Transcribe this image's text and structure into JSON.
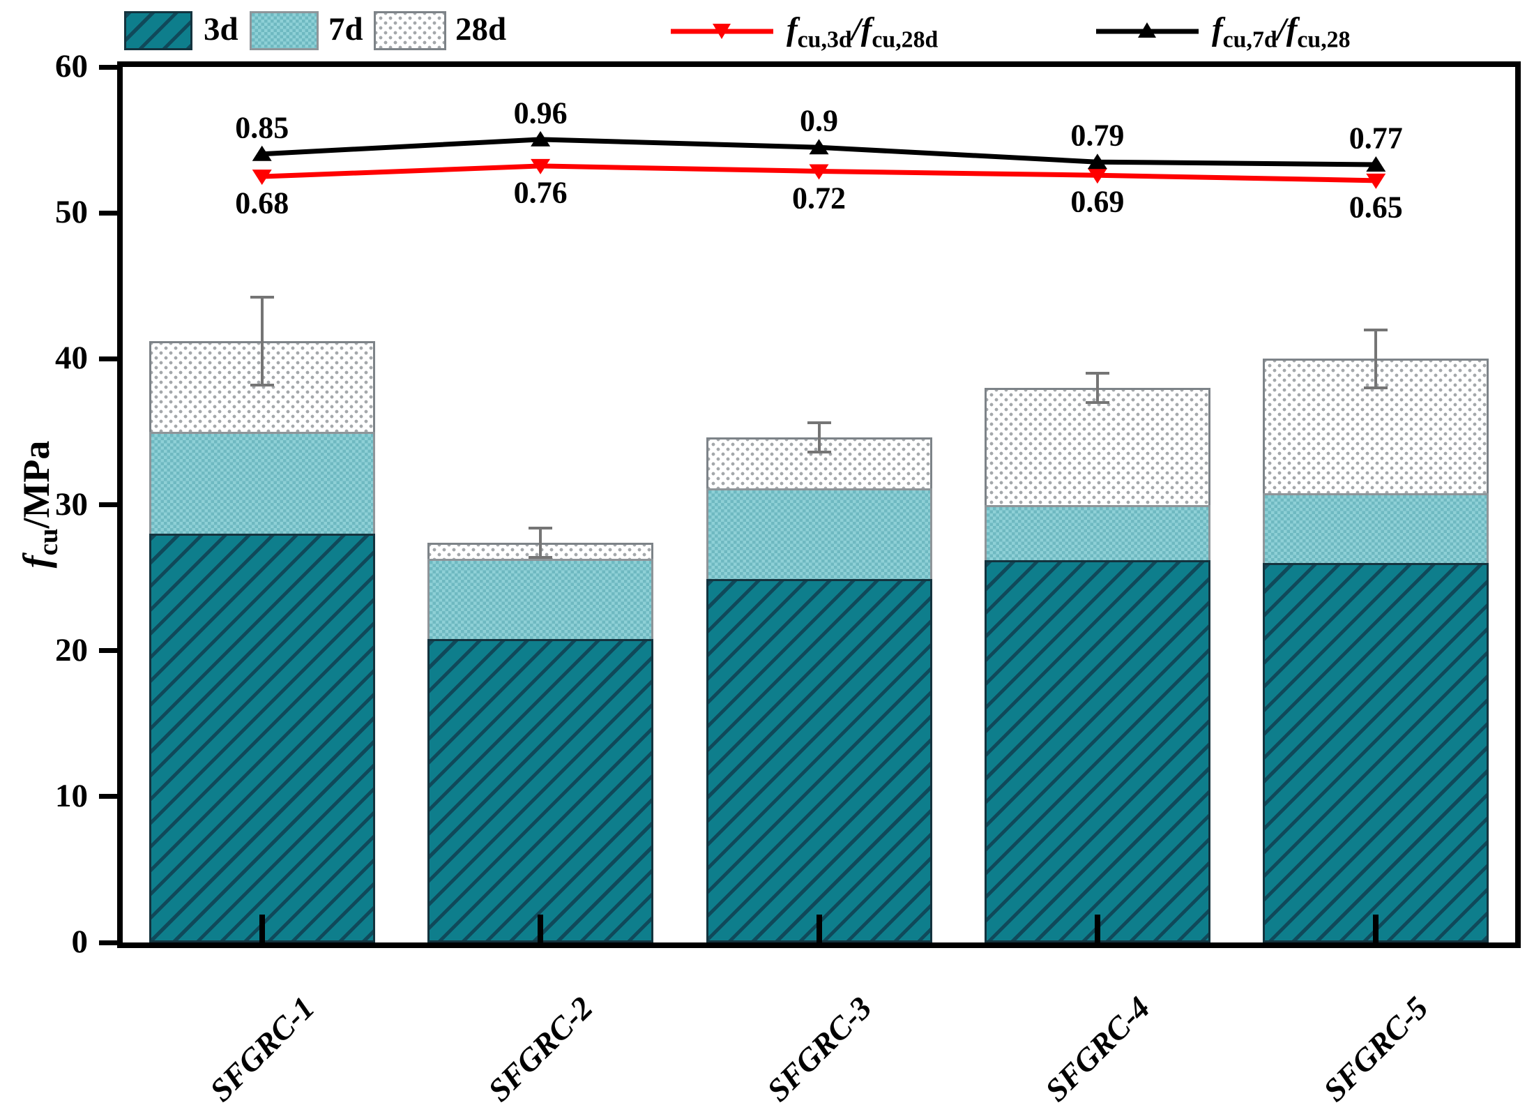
{
  "legend": {
    "bars": [
      {
        "label": "3d",
        "pattern": "teal-diagonal-hatch"
      },
      {
        "label": "7d",
        "pattern": "light-teal-checker"
      },
      {
        "label": "28d",
        "pattern": "white-gray-dots"
      }
    ],
    "lines": [
      {
        "f1": "f",
        "sub1": "cu,3d",
        "slash": "/",
        "f2": "f",
        "sub2": "cu,28d",
        "color": "#ff0000",
        "marker": "triangle-down"
      },
      {
        "f1": "f",
        "sub1": "cu,7d",
        "slash": "/",
        "f2": "f",
        "sub2": "cu,28",
        "color": "#000000",
        "marker": "triangle-up"
      }
    ]
  },
  "y_axis": {
    "title_f": "f",
    "title_sub": "cu",
    "title_rest": "/MPa",
    "tick_labels": [
      "0",
      "10",
      "20",
      "30",
      "40",
      "50",
      "60"
    ]
  },
  "x_axis": {
    "categories": [
      "SFGRC-1",
      "SFGRC-2",
      "SFGRC-3",
      "SFGRC-4",
      "SFGRC-5"
    ]
  },
  "chart_data": {
    "type": "bar",
    "subtype": "overlay-bars-with-ratio-lines",
    "categories": [
      "SFGRC-1",
      "SFGRC-2",
      "SFGRC-3",
      "SFGRC-4",
      "SFGRC-5"
    ],
    "series": [
      {
        "name": "3d",
        "type": "bar",
        "values": [
          28.0,
          20.8,
          24.9,
          26.2,
          26.0
        ]
      },
      {
        "name": "7d",
        "type": "bar",
        "values": [
          35.0,
          26.3,
          31.1,
          30.0,
          30.8
        ]
      },
      {
        "name": "28d",
        "type": "bar",
        "values": [
          41.2,
          27.4,
          34.6,
          38.0,
          40.0
        ],
        "error_plus": [
          3.0,
          1.0,
          1.0,
          1.0,
          2.0
        ],
        "error_minus": [
          3.0,
          1.0,
          1.0,
          1.0,
          2.0
        ]
      },
      {
        "name": "fcu,3d/fcu,28d",
        "type": "line",
        "color": "#ff0000",
        "marker": "triangle-down",
        "values": [
          0.68,
          0.76,
          0.72,
          0.69,
          0.65
        ],
        "labels": [
          "0.68",
          "0.76",
          "0.72",
          "0.69",
          "0.65"
        ]
      },
      {
        "name": "fcu,7d/fcu,28",
        "type": "line",
        "color": "#000000",
        "marker": "triangle-up",
        "values": [
          0.85,
          0.96,
          0.9,
          0.79,
          0.77
        ],
        "labels": [
          "0.85",
          "0.96",
          "0.9",
          "0.79",
          "0.77"
        ]
      }
    ],
    "ylabel": "fcu/MPa",
    "ylim": [
      0,
      60
    ],
    "y_tick_step": 10,
    "grid": false,
    "legend_position": "top",
    "bar_mode": "overlay"
  },
  "colors": {
    "bar_3d_fill": "#0e7e8c",
    "bar_3d_hatch": "#10495a",
    "bar_7d_fill": "#7fc5cc",
    "bar_28d_dots": "#a4a8ab",
    "error_bar": "#757575",
    "line_red": "#ff0000",
    "line_black": "#000000",
    "axis": "#000000",
    "background": "#ffffff"
  }
}
